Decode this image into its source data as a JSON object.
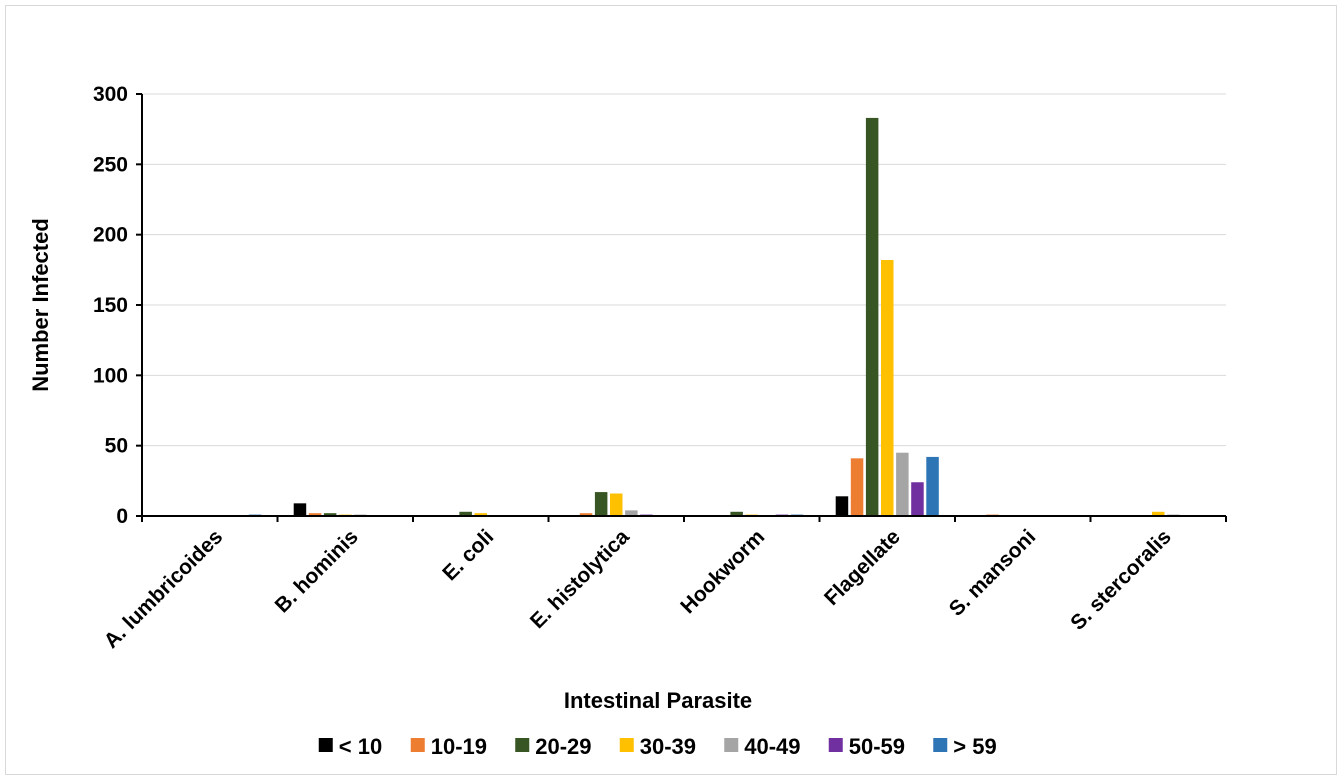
{
  "chart_data": {
    "type": "bar",
    "title": "",
    "xlabel": "Intestinal Parasite",
    "ylabel": "Number Infected",
    "ylim": [
      0,
      300
    ],
    "yticks": [
      0,
      50,
      100,
      150,
      200,
      250,
      300
    ],
    "grid": true,
    "legend_position": "bottom",
    "categories": [
      "A. lumbricoides",
      "B. hominis",
      "E. coli",
      "E. histolytica",
      "Hookworm",
      "Flagellate",
      "S. mansoni",
      "S. stercoralis"
    ],
    "series": [
      {
        "name": "< 10",
        "color": "#000000",
        "values": [
          0,
          9,
          0,
          0,
          0,
          14,
          0,
          0
        ]
      },
      {
        "name": "10-19",
        "color": "#ED7D31",
        "values": [
          0,
          2,
          0,
          2,
          0,
          41,
          1,
          0
        ]
      },
      {
        "name": "20-29",
        "color": "#375623",
        "values": [
          0,
          2,
          3,
          17,
          3,
          283,
          0,
          0
        ]
      },
      {
        "name": "30-39",
        "color": "#FFC000",
        "values": [
          0,
          1,
          2,
          16,
          1,
          182,
          0,
          3
        ]
      },
      {
        "name": "40-49",
        "color": "#A5A5A5",
        "values": [
          0,
          1,
          0,
          4,
          0,
          45,
          0,
          1
        ]
      },
      {
        "name": "50-59",
        "color": "#7030A0",
        "values": [
          0,
          0,
          0,
          1,
          1,
          24,
          0,
          0
        ]
      },
      {
        "name": "> 59",
        "color": "#2E75B6",
        "values": [
          1,
          0,
          0,
          0,
          1,
          42,
          0,
          0
        ]
      }
    ]
  }
}
